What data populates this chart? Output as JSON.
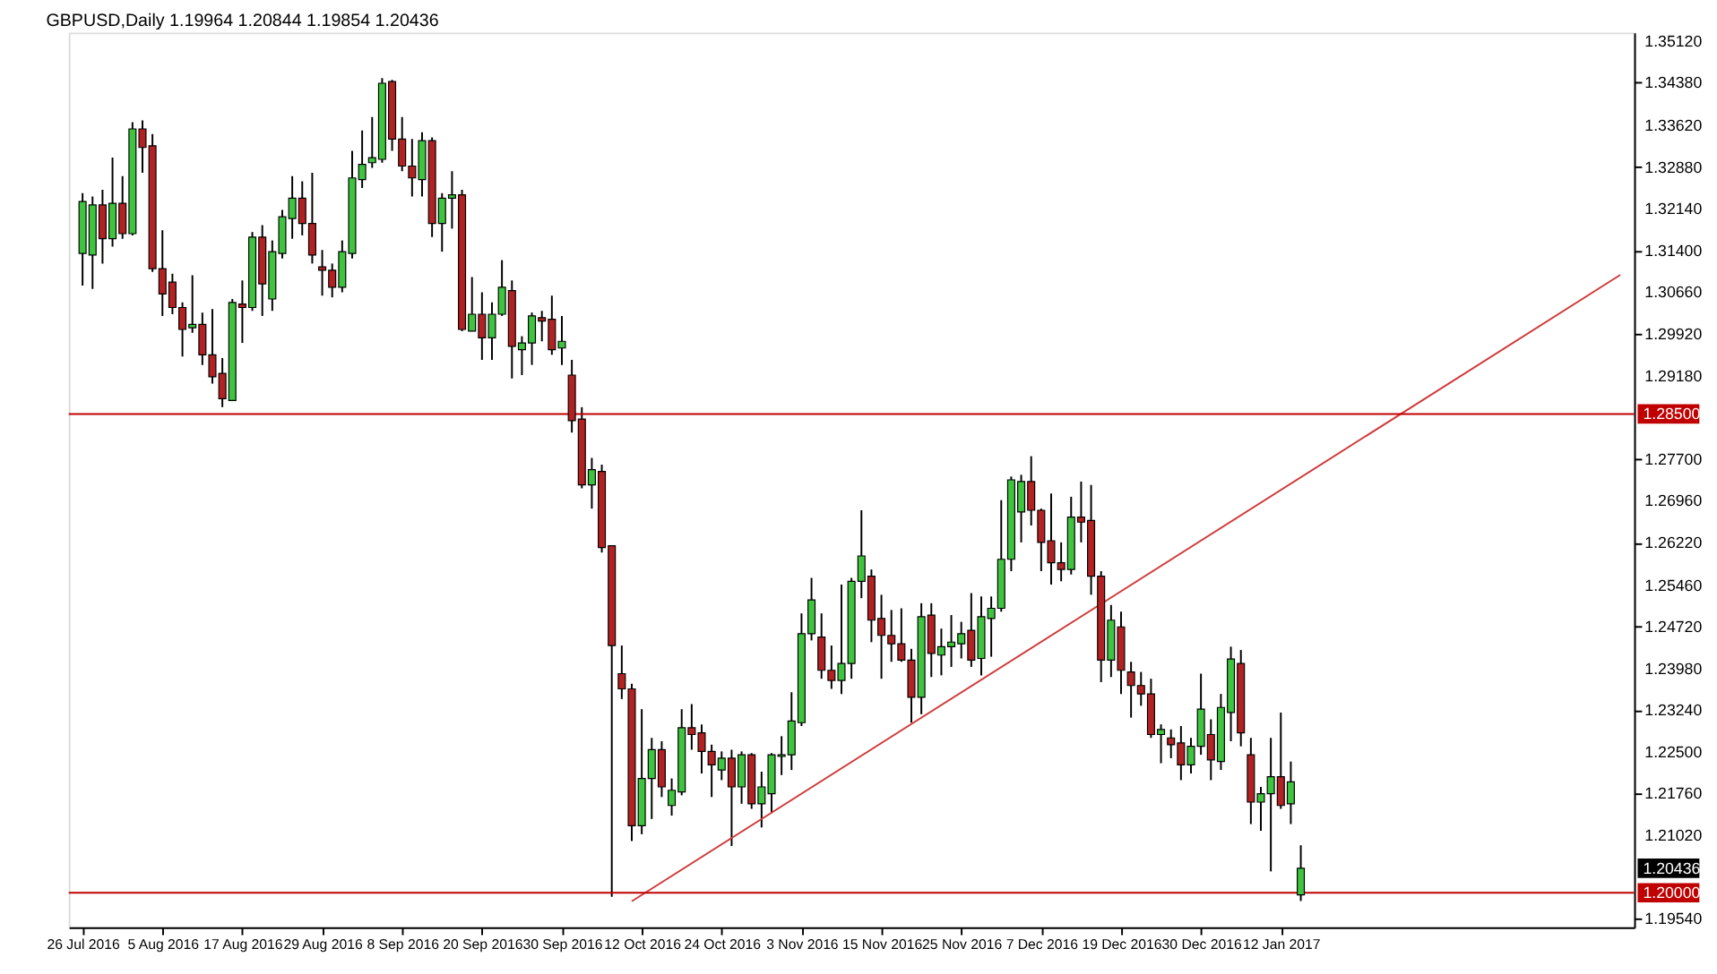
{
  "chart_data": {
    "type": "candlestick",
    "title": "GBPUSD,Daily  1.19964 1.20844 1.19854 1.20436",
    "categories": [
      "26 Jul 2016",
      null,
      null,
      null,
      null,
      null,
      null,
      null,
      "5 Aug 2016",
      null,
      null,
      null,
      null,
      null,
      null,
      null,
      "17 Aug 2016",
      null,
      null,
      null,
      null,
      null,
      null,
      null,
      "29 Aug 2016",
      null,
      null,
      null,
      null,
      null,
      null,
      null,
      "8 Sep 2016",
      null,
      null,
      null,
      null,
      null,
      null,
      null,
      "20 Sep 2016",
      null,
      null,
      null,
      null,
      null,
      null,
      null,
      "30 Sep 2016",
      null,
      null,
      null,
      null,
      null,
      null,
      null,
      "12 Oct 2016",
      null,
      null,
      null,
      null,
      null,
      null,
      null,
      "24 Oct 2016",
      null,
      null,
      null,
      null,
      null,
      null,
      null,
      "3 Nov 2016",
      null,
      null,
      null,
      null,
      null,
      null,
      null,
      "15 Nov 2016",
      null,
      null,
      null,
      null,
      null,
      null,
      null,
      "25 Nov 2016",
      null,
      null,
      null,
      null,
      null,
      null,
      null,
      "7 Dec 2016",
      null,
      null,
      null,
      null,
      null,
      null,
      null,
      "19 Dec 2016",
      null,
      null,
      null,
      null,
      null,
      null,
      null,
      "30 Dec 2016",
      null,
      null,
      null,
      null,
      null,
      null,
      null,
      "12 Jan 2017",
      null,
      null,
      null,
      null,
      null,
      null,
      null,
      null,
      null,
      null,
      null,
      null,
      null,
      null,
      null,
      null,
      null,
      null,
      null,
      null,
      null,
      null,
      null,
      null,
      null,
      null,
      null,
      null,
      null,
      null,
      null,
      null,
      null,
      null
    ],
    "ohlc": [
      [
        1.3135,
        1.3242,
        1.3078,
        1.3227
      ],
      [
        1.3132,
        1.3236,
        1.3072,
        1.3221
      ],
      [
        1.3221,
        1.3248,
        1.3117,
        1.3161
      ],
      [
        1.3161,
        1.3305,
        1.3147,
        1.3224
      ],
      [
        1.3224,
        1.3272,
        1.3161,
        1.317
      ],
      [
        1.317,
        1.3368,
        1.3167,
        1.3356
      ],
      [
        1.3356,
        1.3371,
        1.3278,
        1.3323
      ],
      [
        1.3326,
        1.3347,
        1.3102,
        1.3108
      ],
      [
        1.3108,
        1.3176,
        1.3024,
        1.3063
      ],
      [
        1.3084,
        1.3099,
        1.3027,
        1.3039
      ],
      [
        1.3039,
        1.3048,
        1.2952,
        1.3
      ],
      [
        1.3003,
        1.3096,
        1.2994,
        1.3009
      ],
      [
        1.3009,
        1.303,
        1.2937,
        1.2955
      ],
      [
        1.2955,
        1.3036,
        1.2904,
        1.2916
      ],
      [
        1.2922,
        1.2949,
        1.2862,
        1.2877
      ],
      [
        1.2874,
        1.3054,
        1.2874,
        1.3048
      ],
      [
        1.3045,
        1.3087,
        1.2976,
        1.3039
      ],
      [
        1.3039,
        1.3173,
        1.3033,
        1.3164
      ],
      [
        1.3164,
        1.3185,
        1.3024,
        1.3081
      ],
      [
        1.3054,
        1.3158,
        1.3033,
        1.3138
      ],
      [
        1.3135,
        1.3212,
        1.3126,
        1.32
      ],
      [
        1.3197,
        1.3272,
        1.3161,
        1.3233
      ],
      [
        1.3233,
        1.3263,
        1.3167,
        1.3188
      ],
      [
        1.3188,
        1.3278,
        1.3117,
        1.3132
      ],
      [
        1.3111,
        1.3141,
        1.306,
        1.3105
      ],
      [
        1.3105,
        1.3117,
        1.3057,
        1.3075
      ],
      [
        1.3075,
        1.3158,
        1.3066,
        1.3138
      ],
      [
        1.3135,
        1.3317,
        1.3126,
        1.3269
      ],
      [
        1.3266,
        1.3353,
        1.3251,
        1.3293
      ],
      [
        1.3296,
        1.3377,
        1.3287,
        1.3305
      ],
      [
        1.3302,
        1.3446,
        1.3296,
        1.3437
      ],
      [
        1.344,
        1.3443,
        1.3317,
        1.3338
      ],
      [
        1.3338,
        1.3377,
        1.3281,
        1.329
      ],
      [
        1.329,
        1.3338,
        1.3236,
        1.3269
      ],
      [
        1.3266,
        1.335,
        1.3236,
        1.3335
      ],
      [
        1.3335,
        1.3341,
        1.3164,
        1.3188
      ],
      [
        1.3188,
        1.3242,
        1.3138,
        1.3233
      ],
      [
        1.3233,
        1.3281,
        1.3179,
        1.3239
      ],
      [
        1.3239,
        1.3248,
        1.2997,
        1.3
      ],
      [
        1.2997,
        1.3093,
        1.2997,
        1.3027
      ],
      [
        1.3027,
        1.3066,
        1.2946,
        1.2985
      ],
      [
        1.2985,
        1.3048,
        1.2946,
        1.3027
      ],
      [
        1.3027,
        1.3123,
        1.3024,
        1.3075
      ],
      [
        1.3069,
        1.3087,
        1.2913,
        1.297
      ],
      [
        1.2964,
        1.2988,
        1.2919,
        1.2976
      ],
      [
        1.2976,
        1.303,
        1.2937,
        1.3024
      ],
      [
        1.3021,
        1.3033,
        1.2979,
        1.3015
      ],
      [
        1.3018,
        1.306,
        1.2955,
        1.2964
      ],
      [
        1.2967,
        1.3024,
        1.2937,
        1.2979
      ],
      [
        1.2919,
        1.2946,
        1.2817,
        1.2838
      ],
      [
        1.2841,
        1.2862,
        1.2718,
        1.2724
      ],
      [
        1.2724,
        1.2772,
        1.2682,
        1.2751
      ],
      [
        1.2748,
        1.276,
        1.2604,
        1.2613
      ],
      [
        1.2616,
        1.2616,
        1.1993,
        1.2439
      ],
      [
        1.2389,
        1.2439,
        1.2344,
        1.2362
      ],
      [
        1.2362,
        1.2371,
        1.2092,
        1.2119
      ],
      [
        1.2119,
        1.2326,
        1.2104,
        1.2203
      ],
      [
        1.2203,
        1.2275,
        1.2131,
        1.2254
      ],
      [
        1.2254,
        1.2269,
        1.217,
        1.2188
      ],
      [
        1.2155,
        1.2203,
        1.2137,
        1.2182
      ],
      [
        1.2179,
        1.2326,
        1.2173,
        1.2293
      ],
      [
        1.2293,
        1.2335,
        1.2254,
        1.2281
      ],
      [
        1.2284,
        1.2299,
        1.2212,
        1.2251
      ],
      [
        1.2251,
        1.2263,
        1.217,
        1.2227
      ],
      [
        1.2218,
        1.2251,
        1.22,
        1.2239
      ],
      [
        1.2239,
        1.2254,
        1.2083,
        1.2188
      ],
      [
        1.2188,
        1.2251,
        1.2158,
        1.2245
      ],
      [
        1.2245,
        1.2248,
        1.2149,
        1.2158
      ],
      [
        1.2158,
        1.2215,
        1.2116,
        1.2188
      ],
      [
        1.2176,
        1.2248,
        1.2143,
        1.2245
      ],
      [
        1.2242,
        1.2278,
        1.2209,
        1.2245
      ],
      [
        1.2245,
        1.2356,
        1.2218,
        1.2305
      ],
      [
        1.2302,
        1.2496,
        1.2296,
        1.246
      ],
      [
        1.246,
        1.2559,
        1.2448,
        1.252
      ],
      [
        1.2454,
        1.2496,
        1.238,
        1.2395
      ],
      [
        1.2395,
        1.2439,
        1.2362,
        1.2377
      ],
      [
        1.2377,
        1.2547,
        1.2353,
        1.2407
      ],
      [
        1.2407,
        1.2559,
        1.238,
        1.2553
      ],
      [
        1.2553,
        1.2679,
        1.2523,
        1.2598
      ],
      [
        1.2562,
        1.2574,
        1.2445,
        1.2484
      ],
      [
        1.2487,
        1.2529,
        1.238,
        1.2457
      ],
      [
        1.2457,
        1.2502,
        1.241,
        1.2442
      ],
      [
        1.2442,
        1.2505,
        1.241,
        1.2413
      ],
      [
        1.2413,
        1.2433,
        1.2302,
        1.2347
      ],
      [
        1.2347,
        1.2514,
        1.2317,
        1.249
      ],
      [
        1.2493,
        1.2514,
        1.2383,
        1.2425
      ],
      [
        1.2422,
        1.2469,
        1.2386,
        1.2437
      ],
      [
        1.2437,
        1.2493,
        1.2401,
        1.2445
      ],
      [
        1.2442,
        1.2481,
        1.2416,
        1.246
      ],
      [
        1.2466,
        1.2532,
        1.2401,
        1.2413
      ],
      [
        1.2416,
        1.2526,
        1.2386,
        1.249
      ],
      [
        1.2487,
        1.2526,
        1.2419,
        1.2505
      ],
      [
        1.2505,
        1.2697,
        1.2499,
        1.2592
      ],
      [
        1.2592,
        1.2739,
        1.2571,
        1.2733
      ],
      [
        1.2676,
        1.2742,
        1.2622,
        1.273
      ],
      [
        1.273,
        1.2775,
        1.2652,
        1.2679
      ],
      [
        1.2679,
        1.2682,
        1.2571,
        1.2622
      ],
      [
        1.2625,
        1.2709,
        1.2547,
        1.2586
      ],
      [
        1.2586,
        1.2622,
        1.2553,
        1.2574
      ],
      [
        1.2574,
        1.2703,
        1.2565,
        1.2667
      ],
      [
        1.2667,
        1.273,
        1.2622,
        1.2658
      ],
      [
        1.2661,
        1.2724,
        1.2529,
        1.2562
      ],
      [
        1.2562,
        1.2571,
        1.2374,
        1.2413
      ],
      [
        1.2413,
        1.2511,
        1.2383,
        1.2484
      ],
      [
        1.2472,
        1.2499,
        1.2353,
        1.2395
      ],
      [
        1.2392,
        1.241,
        1.2311,
        1.2368
      ],
      [
        1.2368,
        1.2392,
        1.2332,
        1.2353
      ],
      [
        1.2353,
        1.238,
        1.2275,
        1.2281
      ],
      [
        1.2281,
        1.2299,
        1.223,
        1.229
      ],
      [
        1.2275,
        1.229,
        1.2239,
        1.2263
      ],
      [
        1.2266,
        1.2296,
        1.22,
        1.2227
      ],
      [
        1.2227,
        1.2275,
        1.2212,
        1.226
      ],
      [
        1.226,
        1.2389,
        1.2245,
        1.2326
      ],
      [
        1.2281,
        1.2308,
        1.22,
        1.2236
      ],
      [
        1.2233,
        1.2353,
        1.2218,
        1.2329
      ],
      [
        1.232,
        1.2437,
        1.2269,
        1.2415
      ],
      [
        1.2407,
        1.2431,
        1.226,
        1.2284
      ],
      [
        1.2245,
        1.2275,
        1.2122,
        1.2161
      ],
      [
        1.2161,
        1.2188,
        1.211,
        1.2176
      ],
      [
        1.2176,
        1.2275,
        1.2038,
        1.2206
      ],
      [
        1.2206,
        1.232,
        1.2149,
        1.2155
      ],
      [
        1.2158,
        1.2233,
        1.2122,
        1.2197
      ],
      [
        1.19964,
        1.20844,
        1.19854,
        1.20436
      ],
      null,
      null,
      null,
      null,
      null,
      null,
      null,
      null,
      null,
      null,
      null,
      null,
      null,
      null,
      null,
      null,
      null,
      null,
      null,
      null,
      null,
      null,
      null,
      null,
      null,
      null,
      null,
      null,
      null,
      null,
      null,
      null
    ],
    "colors": [
      "#3ec43e",
      "#3ec43e",
      "#b22222",
      "#3ec43e",
      "#b22222",
      "#3ec43e",
      "#b22222",
      "#b22222",
      "#b22222",
      "#b22222",
      "#b22222",
      "#3ec43e",
      "#b22222",
      "#b22222",
      "#b22222",
      "#3ec43e",
      "#b22222",
      "#3ec43e",
      "#b22222",
      "#3ec43e",
      "#3ec43e",
      "#3ec43e",
      "#b22222",
      "#b22222",
      "#b22222",
      "#b22222",
      "#3ec43e",
      "#3ec43e",
      "#3ec43e",
      "#3ec43e",
      "#3ec43e",
      "#b22222",
      "#b22222",
      "#b22222",
      "#3ec43e",
      "#b22222",
      "#3ec43e",
      "#3ec43e",
      "#b22222",
      "#3ec43e",
      "#b22222",
      "#3ec43e",
      "#3ec43e",
      "#b22222",
      "#3ec43e",
      "#3ec43e",
      "#b22222",
      "#b22222",
      "#3ec43e",
      "#b22222",
      "#b22222",
      "#3ec43e",
      "#b22222",
      "#b22222",
      "#b22222",
      "#b22222",
      "#3ec43e",
      "#3ec43e",
      "#b22222",
      "#3ec43e",
      "#3ec43e",
      "#b22222",
      "#b22222",
      "#b22222",
      "#3ec43e",
      "#b22222",
      "#3ec43e",
      "#b22222",
      "#3ec43e",
      "#3ec43e",
      "#3ec43e",
      "#3ec43e",
      "#3ec43e",
      "#3ec43e",
      "#b22222",
      "#b22222",
      "#3ec43e",
      "#3ec43e",
      "#3ec43e",
      "#b22222",
      "#b22222",
      "#b22222",
      "#b22222",
      "#b22222",
      "#3ec43e",
      "#b22222",
      "#3ec43e",
      "#3ec43e",
      "#3ec43e",
      "#b22222",
      "#3ec43e",
      "#3ec43e",
      "#3ec43e",
      "#3ec43e",
      "#3ec43e",
      "#b22222",
      "#b22222",
      "#b22222",
      "#b22222",
      "#3ec43e",
      "#b22222",
      "#b22222",
      "#b22222",
      "#3ec43e",
      "#b22222",
      "#b22222",
      "#b22222",
      "#b22222",
      "#3ec43e",
      "#b22222",
      "#b22222",
      "#3ec43e",
      "#3ec43e",
      "#b22222",
      "#3ec43e",
      "#3ec43e",
      "#b22222",
      "#b22222",
      "#3ec43e",
      "#3ec43e",
      "#b22222",
      "#3ec43e",
      "#3ec43e",
      null,
      null,
      null,
      null,
      null,
      null,
      null,
      null,
      null,
      null,
      null,
      null,
      null,
      null,
      null,
      null,
      null,
      null,
      null,
      null,
      null,
      null,
      null,
      null,
      null,
      null,
      null,
      null,
      null,
      null,
      null,
      null
    ],
    "series": [
      {
        "type": "line",
        "color": "#d03a3a",
        "values": [
          null,
          null,
          null,
          null,
          null,
          null,
          null,
          null,
          null,
          null,
          null,
          null,
          null,
          null,
          null,
          null,
          null,
          null,
          null,
          null,
          null,
          null,
          null,
          null,
          null,
          null,
          null,
          null,
          null,
          null,
          null,
          null,
          null,
          null,
          null,
          null,
          null,
          null,
          null,
          null,
          null,
          null,
          null,
          null,
          null,
          null,
          null,
          null,
          null,
          null,
          null,
          null,
          null,
          null,
          null,
          1.1985,
          null,
          null,
          null,
          null,
          null,
          null,
          null,
          null,
          null,
          null,
          null,
          null,
          null,
          null,
          null,
          null,
          null,
          null,
          null,
          null,
          null,
          null,
          null,
          null,
          null,
          null,
          null,
          null,
          null,
          null,
          null,
          null,
          null,
          null,
          null,
          null,
          null,
          null,
          null,
          null,
          null,
          null,
          null,
          null,
          null,
          null,
          null,
          null,
          null,
          null,
          null,
          null,
          null,
          null,
          null,
          null,
          null,
          null,
          null,
          null,
          null,
          null,
          null,
          null,
          null,
          null,
          null,
          null,
          null,
          null,
          null,
          null,
          null,
          null,
          null,
          null,
          null,
          null,
          null,
          null,
          null,
          null,
          null,
          null,
          null,
          null,
          null,
          null,
          null,
          null,
          null,
          null,
          null,
          null,
          null,
          null,
          null,
          null,
          1.3097
        ]
      }
    ],
    "ylim": [
      1.1939,
      1.3527
    ],
    "yticks": [
      {
        "value": 1.3512,
        "label": "1.35120"
      },
      {
        "value": 1.3438,
        "label": "1.34380"
      },
      {
        "value": 1.3362,
        "label": "1.33620"
      },
      {
        "value": 1.3288,
        "label": "1.32880"
      },
      {
        "value": 1.3214,
        "label": "1.32140"
      },
      {
        "value": 1.314,
        "label": "1.31400"
      },
      {
        "value": 1.3066,
        "label": "1.30660"
      },
      {
        "value": 1.2992,
        "label": "1.29920"
      },
      {
        "value": 1.2918,
        "label": "1.29180"
      },
      {
        "value": 1.277,
        "label": "1.27700"
      },
      {
        "value": 1.2696,
        "label": "1.26960"
      },
      {
        "value": 1.2622,
        "label": "1.26220"
      },
      {
        "value": 1.2546,
        "label": "1.25460"
      },
      {
        "value": 1.2472,
        "label": "1.24720"
      },
      {
        "value": 1.2398,
        "label": "1.23980"
      },
      {
        "value": 1.2324,
        "label": "1.23240"
      },
      {
        "value": 1.225,
        "label": "1.22500"
      },
      {
        "value": 1.2176,
        "label": "1.21760"
      },
      {
        "value": 1.2102,
        "label": "1.21020"
      },
      {
        "value": 1.1954,
        "label": "1.19540"
      }
    ],
    "ref_lines": [
      {
        "axis": "y",
        "value": 1.285,
        "label": "1.28500",
        "color": "#c00000"
      },
      {
        "axis": "y",
        "value": 1.2,
        "label": "1.20000",
        "color": "#c00000"
      }
    ],
    "annotations": [
      "1.20436"
    ]
  }
}
